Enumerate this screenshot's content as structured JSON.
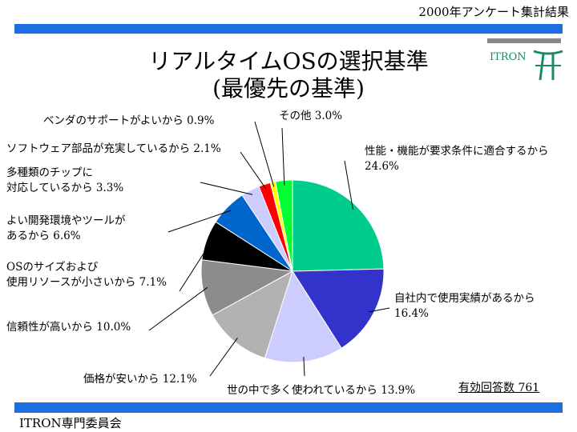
{
  "header": {
    "survey_label": "2000年アンケート集計結果"
  },
  "title": {
    "line1": "リアルタイムOSの選択基準",
    "line2": "(最優先の基準)"
  },
  "logo": {
    "text": "ITRON"
  },
  "footer": {
    "committee": "ITRON専門委員会"
  },
  "total_responses": "有効回答数 761",
  "chart_data": {
    "type": "pie",
    "slices": [
      {
        "label": [
          "性能・機能が要求条件に適合するから",
          "24.6%"
        ],
        "value": 24.6,
        "color": "#00cc8c"
      },
      {
        "label": [
          "自社内で使用実績があるから",
          "16.4%"
        ],
        "value": 16.4,
        "color": "#3333cc"
      },
      {
        "label": [
          "世の中で多く使われているから 13.9%"
        ],
        "value": 13.9,
        "color": "#ccccff"
      },
      {
        "label": [
          "価格が安いから 12.1%"
        ],
        "value": 12.1,
        "color": "#b2b2b2"
      },
      {
        "label": [
          "信頼性が高いから 10.0%"
        ],
        "value": 10.0,
        "color": "#8c8c8c"
      },
      {
        "label": [
          "OSのサイズおよび",
          "使用リソースが小さいから 7.1%"
        ],
        "value": 7.1,
        "color": "#000000"
      },
      {
        "label": [
          "よい開発環境やツールが",
          "あるから 6.6%"
        ],
        "value": 6.6,
        "color": "#0066cc"
      },
      {
        "label": [
          "多種類のチップに",
          "対応しているから 3.3%"
        ],
        "value": 3.3,
        "color": "#ccccff"
      },
      {
        "label": [
          "ソフトウェア部品が充実しているから 2.1%"
        ],
        "value": 2.1,
        "color": "#ff0000"
      },
      {
        "label": [
          "ベンダのサポートがよいから 0.9%"
        ],
        "value": 0.9,
        "color": "#ffff00"
      },
      {
        "label": [
          "その他 3.0%"
        ],
        "value": 3.0,
        "color": "#00ff33"
      }
    ]
  }
}
